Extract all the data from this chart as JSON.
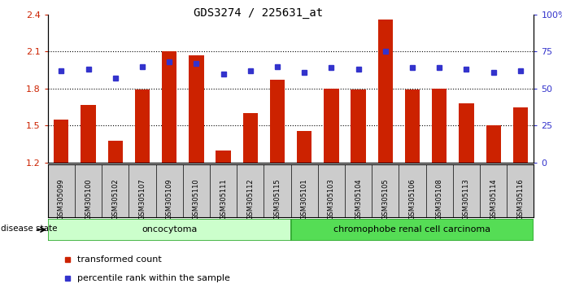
{
  "title": "GDS3274 / 225631_at",
  "samples": [
    "GSM305099",
    "GSM305100",
    "GSM305102",
    "GSM305107",
    "GSM305109",
    "GSM305110",
    "GSM305111",
    "GSM305112",
    "GSM305115",
    "GSM305101",
    "GSM305103",
    "GSM305104",
    "GSM305105",
    "GSM305106",
    "GSM305108",
    "GSM305113",
    "GSM305114",
    "GSM305116"
  ],
  "bar_values": [
    1.55,
    1.67,
    1.38,
    1.79,
    2.1,
    2.07,
    1.3,
    1.6,
    1.87,
    1.46,
    1.8,
    1.79,
    2.36,
    1.79,
    1.8,
    1.68,
    1.5,
    1.65
  ],
  "dot_values": [
    62,
    63,
    57,
    65,
    68,
    67,
    60,
    62,
    65,
    61,
    64,
    63,
    75,
    64,
    64,
    63,
    61,
    62
  ],
  "ylim_left": [
    1.2,
    2.4
  ],
  "ylim_right": [
    0,
    100
  ],
  "yticks_left": [
    1.2,
    1.5,
    1.8,
    2.1,
    2.4
  ],
  "yticks_right": [
    0,
    25,
    50,
    75,
    100
  ],
  "ytick_labels_right": [
    "0",
    "25",
    "50",
    "75",
    "100%"
  ],
  "bar_color": "#cc2200",
  "dot_color": "#3333cc",
  "oncocytoma_count": 9,
  "chromophobe_count": 9,
  "label_transformed": "transformed count",
  "label_percentile": "percentile rank within the sample",
  "disease_label": "disease state",
  "group1_label": "oncocytoma",
  "group2_label": "chromophobe renal cell carcinoma",
  "group1_color": "#ccffcc",
  "group2_color": "#55dd55",
  "xtick_bg_color": "#cccccc",
  "group_border_color": "#33aa33"
}
